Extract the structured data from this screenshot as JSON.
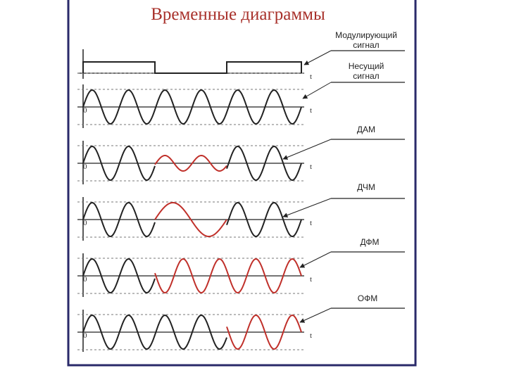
{
  "title": "Временные диаграммы",
  "time_label": "t",
  "origin_label": "0",
  "rows": [
    {
      "label": [
        "Модулирующий",
        "сигнал"
      ]
    },
    {
      "label": [
        "Несущий",
        "сигнал"
      ]
    },
    {
      "label": [
        "ДАМ"
      ]
    },
    {
      "label": [
        "ДЧМ"
      ]
    },
    {
      "label": [
        "ДФМ"
      ]
    },
    {
      "label": [
        "ОФМ"
      ]
    }
  ]
}
